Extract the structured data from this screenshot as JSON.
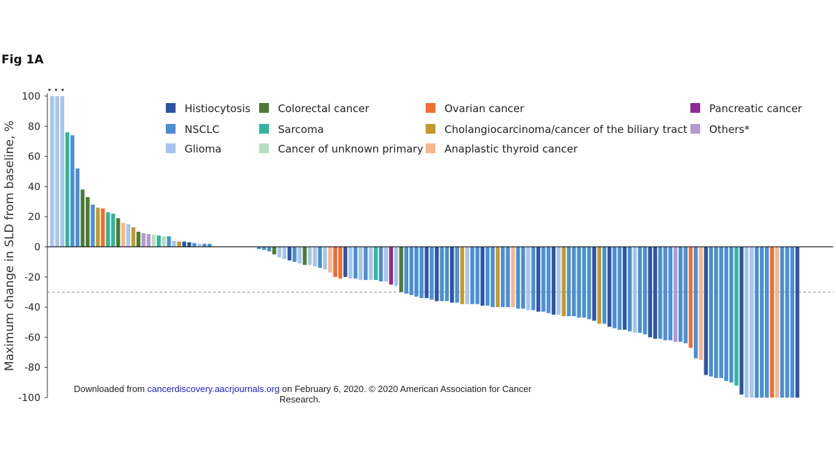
{
  "figure": {
    "label": "Fig 1A"
  },
  "footer": {
    "prefix": "Downloaded from ",
    "link_text": "cancerdiscovery.aacrjournals.org",
    "middle": " on February 6, 2020. © 2020 American Association for Cancer",
    "line2": "Research."
  },
  "chart_data": {
    "type": "bar",
    "title": "",
    "xlabel": "",
    "ylabel": "Maximum change in SLD from baseline, %",
    "ylim": [
      -100,
      100
    ],
    "yticks": [
      100,
      80,
      60,
      40,
      20,
      0,
      -20,
      -40,
      -60,
      -80,
      -100
    ],
    "reference_line": -30,
    "marker_annotation": "•••",
    "legend": [
      {
        "key": "histio",
        "label": "Histiocytosis",
        "color": "#2e55a4"
      },
      {
        "key": "nsclc",
        "label": "NSCLC",
        "color": "#4a8fd4"
      },
      {
        "key": "glioma",
        "label": "Glioma",
        "color": "#a7c5ea"
      },
      {
        "key": "colorectal",
        "label": "Colorectal cancer",
        "color": "#4c7a35"
      },
      {
        "key": "sarcoma",
        "label": "Sarcoma",
        "color": "#31b59a"
      },
      {
        "key": "cup",
        "label": "Cancer of unknown primary",
        "color": "#b7dfbf"
      },
      {
        "key": "ovarian",
        "label": "Ovarian cancer",
        "color": "#f36c30"
      },
      {
        "key": "cholangio",
        "label": "Cholangiocarcinoma/cancer of the biliary tract",
        "color": "#c49a2a"
      },
      {
        "key": "thyroid",
        "label": "Anaplastic thyroid cancer",
        "color": "#f6b68a"
      },
      {
        "key": "pancreatic",
        "label": "Pancreatic cancer",
        "color": "#8e2b8e"
      },
      {
        "key": "others",
        "label": "Others*",
        "color": "#b09ccf"
      }
    ],
    "series": [
      {
        "name": "glioma",
        "values": [
          100
        ]
      },
      {
        "name": "glioma",
        "values": [
          100
        ]
      },
      {
        "name": "glioma",
        "values": [
          100
        ]
      },
      {
        "name": "sarcoma",
        "values": [
          76
        ]
      },
      {
        "name": "nsclc",
        "values": [
          74
        ]
      },
      {
        "name": "nsclc",
        "values": [
          52
        ]
      },
      {
        "name": "colorectal",
        "values": [
          38
        ]
      },
      {
        "name": "colorectal",
        "values": [
          33
        ]
      },
      {
        "name": "nsclc",
        "values": [
          28
        ]
      },
      {
        "name": "cholangio",
        "values": [
          26
        ]
      },
      {
        "name": "ovarian",
        "values": [
          25.5
        ]
      },
      {
        "name": "sarcoma",
        "values": [
          23
        ]
      },
      {
        "name": "sarcoma",
        "values": [
          22
        ]
      },
      {
        "name": "colorectal",
        "values": [
          19
        ]
      },
      {
        "name": "thyroid",
        "values": [
          16
        ]
      },
      {
        "name": "glioma",
        "values": [
          15
        ]
      },
      {
        "name": "cholangio",
        "values": [
          13
        ]
      },
      {
        "name": "colorectal",
        "values": [
          10
        ]
      },
      {
        "name": "others",
        "values": [
          9
        ]
      },
      {
        "name": "others",
        "values": [
          8.5
        ]
      },
      {
        "name": "cup",
        "values": [
          8
        ]
      },
      {
        "name": "sarcoma",
        "values": [
          7.5
        ]
      },
      {
        "name": "cup",
        "values": [
          7
        ]
      },
      {
        "name": "nsclc",
        "values": [
          7
        ]
      },
      {
        "name": "glioma",
        "values": [
          4
        ]
      },
      {
        "name": "cholangio",
        "values": [
          3.5
        ]
      },
      {
        "name": "histio",
        "values": [
          3.5
        ]
      },
      {
        "name": "histio",
        "values": [
          3
        ]
      },
      {
        "name": "nsclc",
        "values": [
          2.5
        ]
      },
      {
        "name": "glioma",
        "values": [
          2
        ]
      },
      {
        "name": "nsclc",
        "values": [
          2
        ]
      },
      {
        "name": "nsclc",
        "values": [
          2
        ]
      },
      {
        "name": "nsclc",
        "values": [
          -1.5
        ]
      },
      {
        "name": "nsclc",
        "values": [
          -2
        ]
      },
      {
        "name": "nsclc",
        "values": [
          -3
        ]
      },
      {
        "name": "colorectal",
        "values": [
          -5
        ]
      },
      {
        "name": "glioma",
        "values": [
          -7
        ]
      },
      {
        "name": "glioma",
        "values": [
          -8
        ]
      },
      {
        "name": "histio",
        "values": [
          -9
        ]
      },
      {
        "name": "nsclc",
        "values": [
          -10
        ]
      },
      {
        "name": "glioma",
        "values": [
          -11
        ]
      },
      {
        "name": "colorectal",
        "values": [
          -12
        ]
      },
      {
        "name": "glioma",
        "values": [
          -12
        ]
      },
      {
        "name": "glioma",
        "values": [
          -13
        ]
      },
      {
        "name": "nsclc",
        "values": [
          -14
        ]
      },
      {
        "name": "glioma",
        "values": [
          -15
        ]
      },
      {
        "name": "thyroid",
        "values": [
          -17
        ]
      },
      {
        "name": "ovarian",
        "values": [
          -20
        ]
      },
      {
        "name": "ovarian",
        "values": [
          -21
        ]
      },
      {
        "name": "histio",
        "values": [
          -20
        ]
      },
      {
        "name": "glioma",
        "values": [
          -21
        ]
      },
      {
        "name": "nsclc",
        "values": [
          -21
        ]
      },
      {
        "name": "glioma",
        "values": [
          -22
        ]
      },
      {
        "name": "nsclc",
        "values": [
          -22
        ]
      },
      {
        "name": "glioma",
        "values": [
          -22
        ]
      },
      {
        "name": "sarcoma",
        "values": [
          -22
        ]
      },
      {
        "name": "nsclc",
        "values": [
          -23
        ]
      },
      {
        "name": "glioma",
        "values": [
          -23
        ]
      },
      {
        "name": "pancreatic",
        "values": [
          -25
        ]
      },
      {
        "name": "glioma",
        "values": [
          -26
        ]
      },
      {
        "name": "colorectal",
        "values": [
          -30
        ]
      },
      {
        "name": "nsclc",
        "values": [
          -31
        ]
      },
      {
        "name": "nsclc",
        "values": [
          -32
        ]
      },
      {
        "name": "nsclc",
        "values": [
          -33
        ]
      },
      {
        "name": "nsclc",
        "values": [
          -34
        ]
      },
      {
        "name": "histio",
        "values": [
          -34
        ]
      },
      {
        "name": "nsclc",
        "values": [
          -35
        ]
      },
      {
        "name": "histio",
        "values": [
          -36
        ]
      },
      {
        "name": "nsclc",
        "values": [
          -36
        ]
      },
      {
        "name": "nsclc",
        "values": [
          -36
        ]
      },
      {
        "name": "histio",
        "values": [
          -37
        ]
      },
      {
        "name": "nsclc",
        "values": [
          -37
        ]
      },
      {
        "name": "cholangio",
        "values": [
          -38
        ]
      },
      {
        "name": "glioma",
        "values": [
          -38
        ]
      },
      {
        "name": "nsclc",
        "values": [
          -38
        ]
      },
      {
        "name": "nsclc",
        "values": [
          -38
        ]
      },
      {
        "name": "histio",
        "values": [
          -39
        ]
      },
      {
        "name": "nsclc",
        "values": [
          -39
        ]
      },
      {
        "name": "nsclc",
        "values": [
          -40
        ]
      },
      {
        "name": "cholangio",
        "values": [
          -40
        ]
      },
      {
        "name": "nsclc",
        "values": [
          -40
        ]
      },
      {
        "name": "nsclc",
        "values": [
          -40
        ]
      },
      {
        "name": "thyroid",
        "values": [
          -40
        ]
      },
      {
        "name": "nsclc",
        "values": [
          -41
        ]
      },
      {
        "name": "nsclc",
        "values": [
          -41
        ]
      },
      {
        "name": "glioma",
        "values": [
          -42
        ]
      },
      {
        "name": "nsclc",
        "values": [
          -42
        ]
      },
      {
        "name": "histio",
        "values": [
          -43
        ]
      },
      {
        "name": "nsclc",
        "values": [
          -43
        ]
      },
      {
        "name": "nsclc",
        "values": [
          -44
        ]
      },
      {
        "name": "histio",
        "values": [
          -45
        ]
      },
      {
        "name": "glioma",
        "values": [
          -45
        ]
      },
      {
        "name": "cholangio",
        "values": [
          -46
        ]
      },
      {
        "name": "nsclc",
        "values": [
          -46
        ]
      },
      {
        "name": "nsclc",
        "values": [
          -46
        ]
      },
      {
        "name": "nsclc",
        "values": [
          -47
        ]
      },
      {
        "name": "nsclc",
        "values": [
          -47
        ]
      },
      {
        "name": "nsclc",
        "values": [
          -48
        ]
      },
      {
        "name": "histio",
        "values": [
          -49
        ]
      },
      {
        "name": "cholangio",
        "values": [
          -51
        ]
      },
      {
        "name": "nsclc",
        "values": [
          -51
        ]
      },
      {
        "name": "histio",
        "values": [
          -53
        ]
      },
      {
        "name": "nsclc",
        "values": [
          -54
        ]
      },
      {
        "name": "nsclc",
        "values": [
          -55
        ]
      },
      {
        "name": "histio",
        "values": [
          -55
        ]
      },
      {
        "name": "nsclc",
        "values": [
          -56
        ]
      },
      {
        "name": "glioma",
        "values": [
          -57
        ]
      },
      {
        "name": "nsclc",
        "values": [
          -57
        ]
      },
      {
        "name": "nsclc",
        "values": [
          -58
        ]
      },
      {
        "name": "histio",
        "values": [
          -60
        ]
      },
      {
        "name": "histio",
        "values": [
          -61
        ]
      },
      {
        "name": "nsclc",
        "values": [
          -61
        ]
      },
      {
        "name": "nsclc",
        "values": [
          -62
        ]
      },
      {
        "name": "nsclc",
        "values": [
          -62
        ]
      },
      {
        "name": "others",
        "values": [
          -63
        ]
      },
      {
        "name": "nsclc",
        "values": [
          -63
        ]
      },
      {
        "name": "nsclc",
        "values": [
          -64
        ]
      },
      {
        "name": "ovarian",
        "values": [
          -67
        ]
      },
      {
        "name": "nsclc",
        "values": [
          -74
        ]
      },
      {
        "name": "thyroid",
        "values": [
          -75
        ]
      },
      {
        "name": "histio",
        "values": [
          -85
        ]
      },
      {
        "name": "nsclc",
        "values": [
          -86
        ]
      },
      {
        "name": "nsclc",
        "values": [
          -87
        ]
      },
      {
        "name": "nsclc",
        "values": [
          -87
        ]
      },
      {
        "name": "nsclc",
        "values": [
          -89
        ]
      },
      {
        "name": "nsclc",
        "values": [
          -90
        ]
      },
      {
        "name": "sarcoma",
        "values": [
          -92
        ]
      },
      {
        "name": "histio",
        "values": [
          -98
        ]
      },
      {
        "name": "glioma",
        "values": [
          -100
        ]
      },
      {
        "name": "glioma",
        "values": [
          -100
        ]
      },
      {
        "name": "nsclc",
        "values": [
          -100
        ]
      },
      {
        "name": "nsclc",
        "values": [
          -100
        ]
      },
      {
        "name": "nsclc",
        "values": [
          -100
        ]
      },
      {
        "name": "ovarian",
        "values": [
          -100
        ]
      },
      {
        "name": "thyroid",
        "values": [
          -100
        ]
      },
      {
        "name": "nsclc",
        "values": [
          -100
        ]
      },
      {
        "name": "nsclc",
        "values": [
          -100
        ]
      },
      {
        "name": "nsclc",
        "values": [
          -100
        ]
      },
      {
        "name": "histio",
        "values": [
          -100
        ]
      }
    ]
  }
}
